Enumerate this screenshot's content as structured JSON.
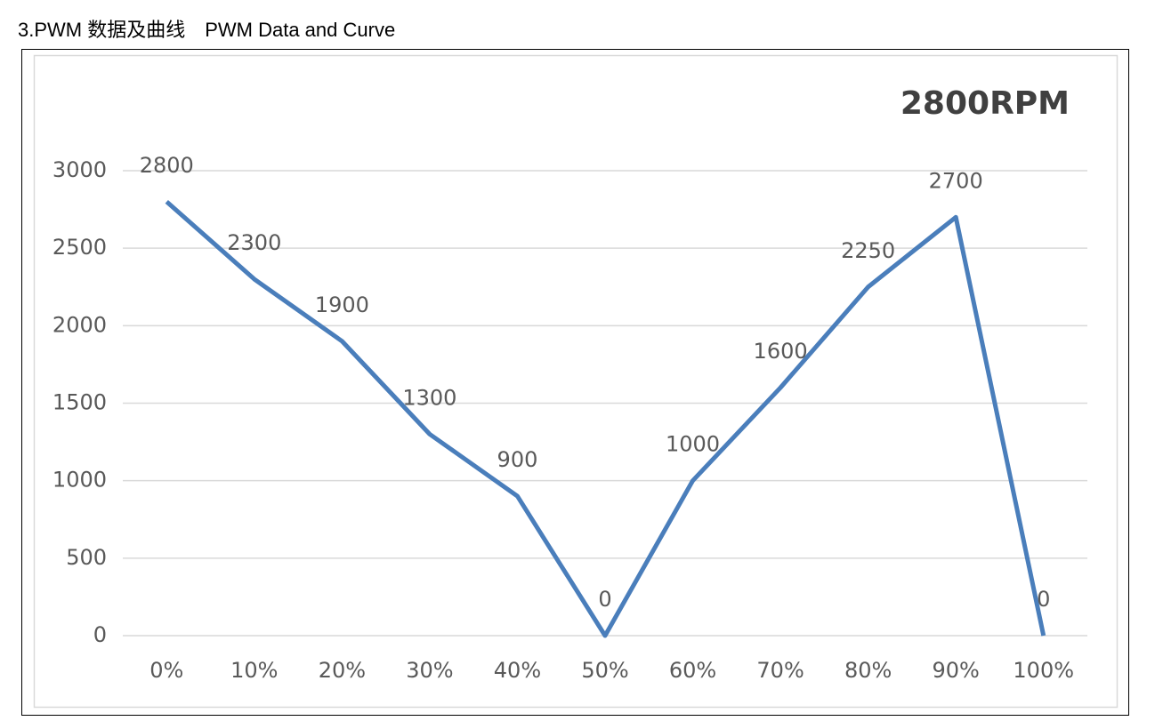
{
  "heading": "3.PWM 数据及曲线　PWM Data and Curve",
  "chart_data": {
    "type": "line",
    "title": "2800RPM",
    "categories": [
      "0%",
      "10%",
      "20%",
      "30%",
      "40%",
      "50%",
      "60%",
      "70%",
      "80%",
      "90%",
      "100%"
    ],
    "values": [
      2800,
      2300,
      1900,
      1300,
      900,
      0,
      1000,
      1600,
      2250,
      2700,
      0
    ],
    "color": "#4a7ebb",
    "ylim": [
      0,
      3000
    ],
    "yticks": [
      0,
      500,
      1000,
      1500,
      2000,
      2500,
      3000
    ],
    "grid": true
  }
}
